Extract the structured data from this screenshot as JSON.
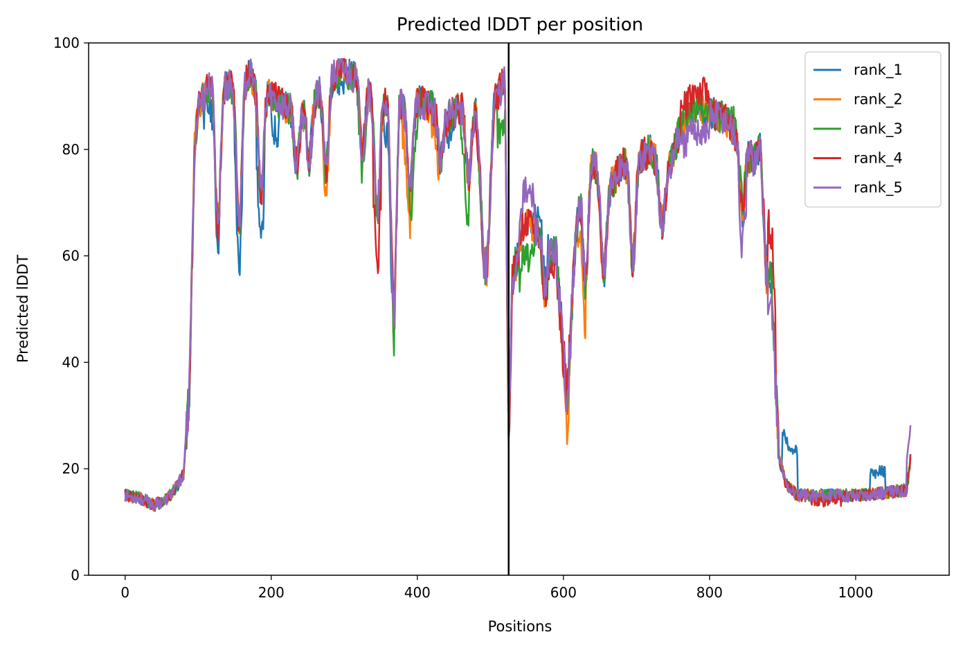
{
  "chart_data": {
    "type": "line",
    "title": "Predicted lDDT per position",
    "xlabel": "Positions",
    "ylabel": "Predicted lDDT",
    "xlim": [
      -50,
      1128
    ],
    "ylim": [
      0,
      100
    ],
    "xticks": [
      0,
      200,
      400,
      600,
      800,
      1000
    ],
    "yticks": [
      0,
      20,
      40,
      60,
      80,
      100
    ],
    "grid": false,
    "legend_position": "top-right",
    "vline": {
      "x": 525,
      "color": "#000000"
    },
    "series": [
      {
        "name": "rank_1",
        "color": "#1f77b4",
        "seed": 11,
        "offsets": [
          [
            108,
            128,
            -4
          ],
          [
            150,
            160,
            -8
          ],
          [
            180,
            190,
            -10
          ],
          [
            200,
            210,
            -6
          ],
          [
            290,
            300,
            -2
          ],
          [
            355,
            365,
            -6
          ],
          [
            440,
            450,
            -4
          ],
          [
            560,
            580,
            4
          ],
          [
            900,
            920,
            8
          ],
          [
            1020,
            1040,
            4
          ]
        ]
      },
      {
        "name": "rank_2",
        "color": "#ff7f0e",
        "seed": 23,
        "offsets": [
          [
            270,
            280,
            -4
          ],
          [
            380,
            390,
            -6
          ],
          [
            420,
            430,
            -4
          ],
          [
            600,
            610,
            -6
          ],
          [
            620,
            630,
            -8
          ],
          [
            690,
            700,
            2
          ]
        ]
      },
      {
        "name": "rank_3",
        "color": "#2ca02c",
        "seed": 37,
        "offsets": [
          [
            540,
            560,
            -6
          ],
          [
            320,
            330,
            -4
          ],
          [
            390,
            400,
            -6
          ],
          [
            460,
            470,
            -8
          ],
          [
            510,
            520,
            -8
          ],
          [
            830,
            850,
            2
          ]
        ]
      },
      {
        "name": "rank_4",
        "color": "#d62728",
        "seed": 41,
        "offsets": [
          [
            340,
            350,
            -10
          ],
          [
            580,
            600,
            -2
          ],
          [
            760,
            800,
            3
          ],
          [
            880,
            890,
            10
          ],
          [
            940,
            980,
            -1
          ]
        ]
      },
      {
        "name": "rank_5",
        "color": "#9467bd",
        "seed": 53,
        "offsets": [
          [
            540,
            560,
            6
          ],
          [
            760,
            800,
            -4
          ],
          [
            840,
            850,
            -6
          ],
          [
            880,
            890,
            -4
          ],
          [
            1070,
            1075,
            6
          ]
        ]
      }
    ],
    "base_profile": [
      [
        0,
        15
      ],
      [
        20,
        14.5
      ],
      [
        40,
        13.2
      ],
      [
        55,
        14
      ],
      [
        70,
        16.5
      ],
      [
        80,
        19
      ],
      [
        88,
        35
      ],
      [
        95,
        80
      ],
      [
        100,
        88
      ],
      [
        110,
        91
      ],
      [
        120,
        93
      ],
      [
        130,
        92
      ],
      [
        150,
        92
      ],
      [
        170,
        94
      ],
      [
        200,
        90
      ],
      [
        220,
        88
      ],
      [
        240,
        87
      ],
      [
        260,
        90
      ],
      [
        280,
        94
      ],
      [
        300,
        95
      ],
      [
        320,
        93
      ],
      [
        340,
        90
      ],
      [
        360,
        88
      ],
      [
        368,
        44
      ],
      [
        375,
        88
      ],
      [
        400,
        89
      ],
      [
        420,
        88
      ],
      [
        440,
        86
      ],
      [
        460,
        88
      ],
      [
        480,
        87
      ],
      [
        495,
        60
      ],
      [
        505,
        89
      ],
      [
        520,
        93
      ],
      [
        525,
        25
      ],
      [
        530,
        55
      ],
      [
        545,
        66
      ],
      [
        560,
        65
      ],
      [
        575,
        64
      ],
      [
        590,
        60
      ],
      [
        605,
        33
      ],
      [
        615,
        60
      ],
      [
        625,
        75
      ],
      [
        640,
        78
      ],
      [
        660,
        72
      ],
      [
        680,
        77
      ],
      [
        700,
        78
      ],
      [
        720,
        80
      ],
      [
        740,
        74
      ],
      [
        760,
        84
      ],
      [
        780,
        88
      ],
      [
        800,
        87
      ],
      [
        820,
        86
      ],
      [
        840,
        82
      ],
      [
        860,
        78
      ],
      [
        870,
        80
      ],
      [
        878,
        55
      ],
      [
        885,
        55
      ],
      [
        895,
        22
      ],
      [
        905,
        17
      ],
      [
        920,
        15
      ],
      [
        960,
        15
      ],
      [
        1000,
        15
      ],
      [
        1040,
        15.5
      ],
      [
        1070,
        16
      ],
      [
        1075,
        22
      ]
    ],
    "dips": [
      [
        127,
        66
      ],
      [
        156,
        66
      ],
      [
        186,
        72
      ],
      [
        235,
        77
      ],
      [
        252,
        78
      ],
      [
        275,
        76
      ],
      [
        325,
        80
      ],
      [
        345,
        68
      ],
      [
        390,
        72
      ],
      [
        432,
        78
      ],
      [
        470,
        75
      ],
      [
        493,
        58
      ],
      [
        575,
        52
      ],
      [
        630,
        55
      ],
      [
        655,
        56
      ],
      [
        695,
        58
      ],
      [
        735,
        66
      ],
      [
        845,
        68
      ]
    ]
  }
}
